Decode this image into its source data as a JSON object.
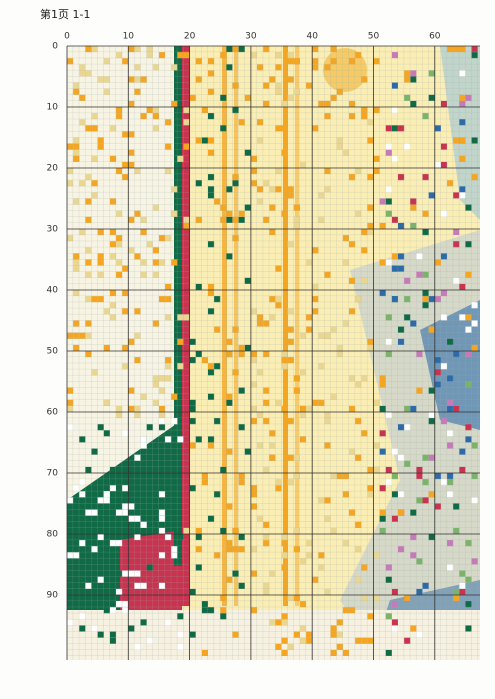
{
  "header": {
    "title": "第1页 1-1"
  },
  "grid": {
    "column_labels": [
      0,
      10,
      20,
      30,
      40,
      50,
      60
    ],
    "row_labels": [
      0,
      10,
      20,
      30,
      40,
      50,
      60,
      70,
      80,
      90
    ]
  }
}
